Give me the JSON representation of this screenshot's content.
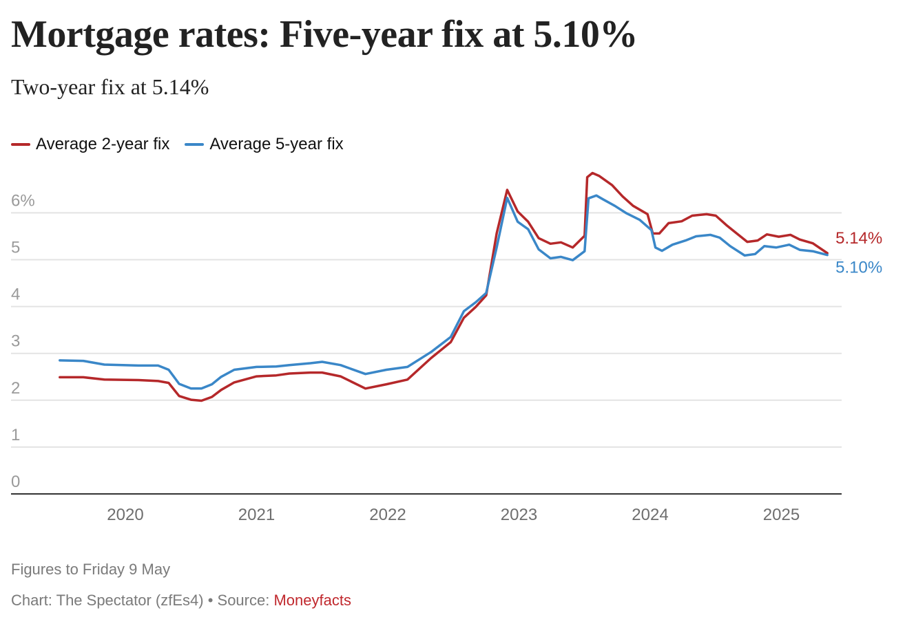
{
  "chart_data": {
    "type": "line",
    "title": "Mortgage rates: Five-year fix at 5.10%",
    "subtitle": "Two-year fix at 5.14%",
    "xlabel": "",
    "ylabel": "",
    "xlim": [
      2019.5,
      2025.36
    ],
    "ylim": [
      0,
      6.5
    ],
    "y_ticks": [
      {
        "value": 0,
        "label": "0"
      },
      {
        "value": 1,
        "label": "1"
      },
      {
        "value": 2,
        "label": "2"
      },
      {
        "value": 3,
        "label": "3"
      },
      {
        "value": 4,
        "label": "4"
      },
      {
        "value": 5,
        "label": "5"
      },
      {
        "value": 6,
        "label": "6%"
      }
    ],
    "x_ticks": [
      {
        "value": 2020,
        "label": "2020"
      },
      {
        "value": 2021,
        "label": "2021"
      },
      {
        "value": 2022,
        "label": "2022"
      },
      {
        "value": 2023,
        "label": "2023"
      },
      {
        "value": 2024,
        "label": "2024"
      },
      {
        "value": 2025,
        "label": "2025"
      }
    ],
    "grid": true,
    "legend_position": "top-left",
    "series": [
      {
        "name": "Average 2-year fix",
        "color": "#b5282a",
        "end_label": "5.14%",
        "points": [
          [
            2019.5,
            2.49
          ],
          [
            2019.68,
            2.49
          ],
          [
            2019.84,
            2.44
          ],
          [
            2020.1,
            2.43
          ],
          [
            2020.25,
            2.41
          ],
          [
            2020.33,
            2.37
          ],
          [
            2020.41,
            2.09
          ],
          [
            2020.5,
            2.01
          ],
          [
            2020.58,
            1.99
          ],
          [
            2020.66,
            2.07
          ],
          [
            2020.73,
            2.22
          ],
          [
            2020.83,
            2.38
          ],
          [
            2021.0,
            2.51
          ],
          [
            2021.15,
            2.53
          ],
          [
            2021.25,
            2.57
          ],
          [
            2021.41,
            2.59
          ],
          [
            2021.5,
            2.59
          ],
          [
            2021.64,
            2.51
          ],
          [
            2021.83,
            2.25
          ],
          [
            2021.99,
            2.34
          ],
          [
            2022.15,
            2.44
          ],
          [
            2022.33,
            2.9
          ],
          [
            2022.48,
            3.24
          ],
          [
            2022.58,
            3.76
          ],
          [
            2022.67,
            3.99
          ],
          [
            2022.75,
            4.24
          ],
          [
            2022.83,
            5.56
          ],
          [
            2022.91,
            6.49
          ],
          [
            2022.99,
            6.03
          ],
          [
            2023.07,
            5.81
          ],
          [
            2023.15,
            5.46
          ],
          [
            2023.24,
            5.34
          ],
          [
            2023.32,
            5.37
          ],
          [
            2023.41,
            5.26
          ],
          [
            2023.5,
            5.51
          ],
          [
            2023.52,
            6.76
          ],
          [
            2023.56,
            6.85
          ],
          [
            2023.61,
            6.79
          ],
          [
            2023.71,
            6.59
          ],
          [
            2023.79,
            6.35
          ],
          [
            2023.87,
            6.15
          ],
          [
            2023.98,
            5.97
          ],
          [
            2024.02,
            5.56
          ],
          [
            2024.07,
            5.56
          ],
          [
            2024.14,
            5.78
          ],
          [
            2024.24,
            5.82
          ],
          [
            2024.32,
            5.94
          ],
          [
            2024.43,
            5.97
          ],
          [
            2024.5,
            5.94
          ],
          [
            2024.58,
            5.74
          ],
          [
            2024.66,
            5.56
          ],
          [
            2024.74,
            5.38
          ],
          [
            2024.82,
            5.41
          ],
          [
            2024.89,
            5.54
          ],
          [
            2024.98,
            5.49
          ],
          [
            2025.07,
            5.53
          ],
          [
            2025.14,
            5.43
          ],
          [
            2025.24,
            5.35
          ],
          [
            2025.35,
            5.14
          ]
        ]
      },
      {
        "name": "Average 5-year fix",
        "color": "#3a87c8",
        "end_label": "5.10%",
        "points": [
          [
            2019.5,
            2.85
          ],
          [
            2019.68,
            2.84
          ],
          [
            2019.84,
            2.76
          ],
          [
            2020.1,
            2.74
          ],
          [
            2020.25,
            2.74
          ],
          [
            2020.33,
            2.65
          ],
          [
            2020.41,
            2.35
          ],
          [
            2020.5,
            2.25
          ],
          [
            2020.58,
            2.25
          ],
          [
            2020.66,
            2.34
          ],
          [
            2020.73,
            2.5
          ],
          [
            2020.83,
            2.65
          ],
          [
            2021.0,
            2.71
          ],
          [
            2021.15,
            2.72
          ],
          [
            2021.25,
            2.75
          ],
          [
            2021.41,
            2.79
          ],
          [
            2021.5,
            2.82
          ],
          [
            2021.64,
            2.75
          ],
          [
            2021.83,
            2.56
          ],
          [
            2021.99,
            2.65
          ],
          [
            2022.15,
            2.71
          ],
          [
            2022.33,
            3.03
          ],
          [
            2022.48,
            3.35
          ],
          [
            2022.58,
            3.9
          ],
          [
            2022.67,
            4.09
          ],
          [
            2022.75,
            4.29
          ],
          [
            2022.83,
            5.26
          ],
          [
            2022.91,
            6.32
          ],
          [
            2022.99,
            5.81
          ],
          [
            2023.07,
            5.65
          ],
          [
            2023.15,
            5.22
          ],
          [
            2023.24,
            5.03
          ],
          [
            2023.32,
            5.06
          ],
          [
            2023.41,
            4.99
          ],
          [
            2023.5,
            5.18
          ],
          [
            2023.53,
            6.31
          ],
          [
            2023.59,
            6.37
          ],
          [
            2023.64,
            6.29
          ],
          [
            2023.73,
            6.15
          ],
          [
            2023.82,
            5.99
          ],
          [
            2023.92,
            5.85
          ],
          [
            2024.01,
            5.63
          ],
          [
            2024.04,
            5.26
          ],
          [
            2024.09,
            5.19
          ],
          [
            2024.17,
            5.32
          ],
          [
            2024.27,
            5.41
          ],
          [
            2024.35,
            5.5
          ],
          [
            2024.46,
            5.53
          ],
          [
            2024.53,
            5.47
          ],
          [
            2024.61,
            5.29
          ],
          [
            2024.72,
            5.09
          ],
          [
            2024.8,
            5.12
          ],
          [
            2024.87,
            5.29
          ],
          [
            2024.96,
            5.26
          ],
          [
            2025.06,
            5.32
          ],
          [
            2025.14,
            5.21
          ],
          [
            2025.24,
            5.18
          ],
          [
            2025.35,
            5.1
          ]
        ]
      }
    ]
  },
  "header": {
    "title": "Mortgage rates: Five-year fix at 5.10%",
    "subtitle": "Two-year fix at 5.14%"
  },
  "legend": [
    {
      "label": "Average 2-year fix",
      "color": "#b5282a"
    },
    {
      "label": "Average 5-year fix",
      "color": "#3a87c8"
    }
  ],
  "footer": {
    "note": "Figures to Friday 9 May",
    "credit_prefix": "Chart: The Spectator (zfEs4) • Source: ",
    "source_label": "Moneyfacts",
    "source_color": "#c0282d"
  }
}
